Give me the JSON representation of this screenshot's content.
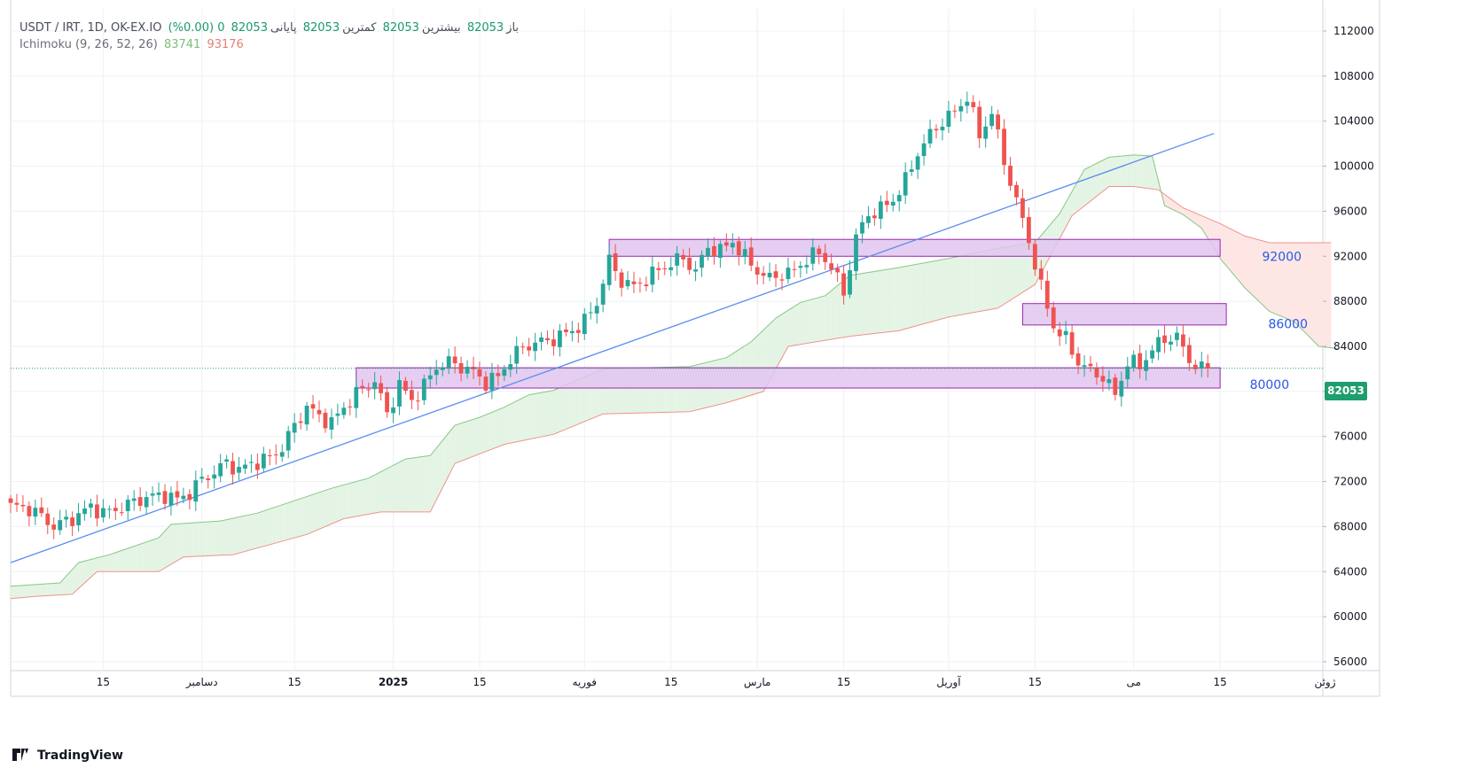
{
  "header": {
    "symbol_line": "USDT / IRT, 1D, OK-EX.IO",
    "open_label": "باز",
    "open_value": "82053",
    "high_label": "بیشترین",
    "high_value": "82053",
    "low_label": "کمترین",
    "low_value": "82053",
    "close_label": "پایانی",
    "close_value": "82053",
    "change": "0 (0.00%)",
    "indicator_name": "Ichimoku (9, 26, 52, 26)",
    "indicator_value_a": "83741",
    "indicator_value_b": "93176"
  },
  "last_price_tag": "82053",
  "footer": {
    "brand": "TradingView"
  },
  "colors": {
    "up": "#26a69a",
    "down": "#ef5350",
    "trendline": "#5b8def",
    "zone_fill": "#e1c6ee",
    "zone_border": "#9c27b0",
    "cloud_green": "#e4f4e4",
    "cloud_red": "#fde6e4",
    "span_a": "#86c886",
    "span_b": "#f0938d",
    "level_text": "#2a57e8",
    "last_price": "#1f9e6d"
  },
  "chart_data": {
    "type": "candlestick",
    "title": "USDT / IRT, 1D, OK-EX.IO",
    "ylim": [
      54000,
      114000
    ],
    "y_ticks": [
      56000,
      60000,
      64000,
      68000,
      72000,
      76000,
      80000,
      84000,
      88000,
      92000,
      96000,
      100000,
      104000,
      108000,
      112000
    ],
    "x_ticks": [
      {
        "day": 15,
        "label": "15"
      },
      {
        "day": 31,
        "label": "دسامبر"
      },
      {
        "day": 46,
        "label": "15"
      },
      {
        "day": 62,
        "label": "2025",
        "bold": true
      },
      {
        "day": 76,
        "label": "15"
      },
      {
        "day": 93,
        "label": "فوریه"
      },
      {
        "day": 107,
        "label": "15"
      },
      {
        "day": 121,
        "label": "مارس"
      },
      {
        "day": 135,
        "label": "15"
      },
      {
        "day": 152,
        "label": "آوریل"
      },
      {
        "day": 166,
        "label": "15"
      },
      {
        "day": 182,
        "label": "می"
      },
      {
        "day": 196,
        "label": "15"
      },
      {
        "day": 213,
        "label": "ژوئن"
      }
    ],
    "x_range_days": [
      0,
      228
    ],
    "close_points": [
      [
        0,
        69800
      ],
      [
        3,
        69600
      ],
      [
        5,
        68900
      ],
      [
        7,
        68000
      ],
      [
        9,
        68500
      ],
      [
        11,
        69000
      ],
      [
        13,
        69800
      ],
      [
        15,
        69200
      ],
      [
        17,
        69500
      ],
      [
        20,
        70200
      ],
      [
        22,
        70600
      ],
      [
        25,
        70800
      ],
      [
        27,
        70400
      ],
      [
        29,
        71000
      ],
      [
        31,
        72200
      ],
      [
        33,
        72800
      ],
      [
        35,
        73700
      ],
      [
        37,
        73000
      ],
      [
        39,
        73600
      ],
      [
        42,
        74100
      ],
      [
        44,
        75000
      ],
      [
        46,
        77000
      ],
      [
        48,
        78600
      ],
      [
        50,
        77800
      ],
      [
        52,
        77200
      ],
      [
        54,
        78600
      ],
      [
        56,
        79800
      ],
      [
        59,
        80900
      ],
      [
        61,
        78000
      ],
      [
        63,
        80600
      ],
      [
        65,
        79200
      ],
      [
        67,
        80500
      ],
      [
        69,
        82200
      ],
      [
        71,
        82600
      ],
      [
        73,
        82200
      ],
      [
        75,
        81700
      ],
      [
        77,
        80800
      ],
      [
        79,
        81300
      ],
      [
        81,
        82900
      ],
      [
        83,
        83900
      ],
      [
        85,
        84300
      ],
      [
        87,
        84500
      ],
      [
        89,
        84900
      ],
      [
        91,
        85400
      ],
      [
        93,
        86200
      ],
      [
        95,
        87900
      ],
      [
        97,
        91600
      ],
      [
        99,
        89800
      ],
      [
        101,
        89300
      ],
      [
        103,
        90000
      ],
      [
        105,
        90800
      ],
      [
        107,
        91400
      ],
      [
        109,
        91800
      ],
      [
        111,
        90700
      ],
      [
        113,
        92800
      ],
      [
        115,
        92500
      ],
      [
        117,
        93300
      ],
      [
        119,
        91900
      ],
      [
        121,
        90700
      ],
      [
        123,
        90000
      ],
      [
        125,
        90400
      ],
      [
        127,
        90700
      ],
      [
        129,
        91800
      ],
      [
        131,
        92300
      ],
      [
        133,
        91100
      ],
      [
        135,
        88700
      ],
      [
        137,
        93700
      ],
      [
        139,
        95700
      ],
      [
        141,
        96200
      ],
      [
        143,
        97000
      ],
      [
        145,
        98700
      ],
      [
        147,
        101200
      ],
      [
        149,
        102800
      ],
      [
        151,
        104000
      ],
      [
        153,
        104800
      ],
      [
        155,
        106200
      ],
      [
        157,
        102700
      ],
      [
        159,
        104800
      ],
      [
        161,
        100400
      ],
      [
        163,
        96900
      ],
      [
        165,
        93400
      ],
      [
        167,
        89200
      ],
      [
        169,
        85800
      ],
      [
        171,
        84600
      ],
      [
        173,
        82600
      ],
      [
        175,
        81800
      ],
      [
        177,
        81300
      ],
      [
        179,
        79700
      ],
      [
        181,
        82600
      ],
      [
        183,
        82300
      ],
      [
        185,
        83700
      ],
      [
        187,
        84700
      ],
      [
        189,
        84800
      ],
      [
        191,
        82800
      ],
      [
        193,
        81900
      ],
      [
        194,
        82053
      ]
    ],
    "trendline": {
      "from": [
        0,
        64800
      ],
      "to": [
        195,
        102900
      ]
    },
    "zones": [
      {
        "x0": 97,
        "x1": 196,
        "y0": 92000,
        "y1": 93500
      },
      {
        "x0": 164,
        "x1": 197,
        "y0": 85900,
        "y1": 87800
      },
      {
        "x0": 56,
        "x1": 196,
        "y0": 80300,
        "y1": 82100
      }
    ],
    "level_labels": [
      {
        "value": "92000",
        "day": 206,
        "price": 92000
      },
      {
        "value": "86000",
        "day": 207,
        "price": 86000
      },
      {
        "value": "80000",
        "day": 204,
        "price": 80600
      }
    ],
    "ichimoku": {
      "name": "Ichimoku (9, 26, 52, 26)",
      "span_a": [
        [
          0,
          62700
        ],
        [
          8,
          63000
        ],
        [
          11,
          64800
        ],
        [
          16,
          65500
        ],
        [
          24,
          67000
        ],
        [
          26,
          68200
        ],
        [
          34,
          68500
        ],
        [
          40,
          69200
        ],
        [
          46,
          70300
        ],
        [
          52,
          71400
        ],
        [
          58,
          72300
        ],
        [
          64,
          74000
        ],
        [
          68,
          74300
        ],
        [
          72,
          77000
        ],
        [
          76,
          77700
        ],
        [
          80,
          78600
        ],
        [
          84,
          79700
        ],
        [
          88,
          80100
        ],
        [
          96,
          82000
        ],
        [
          110,
          82200
        ],
        [
          116,
          83000
        ],
        [
          120,
          84400
        ],
        [
          124,
          86500
        ],
        [
          128,
          87900
        ],
        [
          132,
          88500
        ],
        [
          136,
          90300
        ],
        [
          144,
          91000
        ],
        [
          152,
          91800
        ],
        [
          160,
          92700
        ],
        [
          166,
          93200
        ],
        [
          170,
          95800
        ],
        [
          174,
          99700
        ],
        [
          178,
          100800
        ],
        [
          182,
          101000
        ],
        [
          185,
          100900
        ],
        [
          187,
          96500
        ],
        [
          190,
          95700
        ],
        [
          193,
          94500
        ],
        [
          196,
          91800
        ],
        [
          200,
          89200
        ],
        [
          204,
          87100
        ],
        [
          208,
          86200
        ],
        [
          212,
          84000
        ],
        [
          215,
          83800
        ]
      ],
      "span_b": [
        [
          0,
          61600
        ],
        [
          4,
          61800
        ],
        [
          10,
          62000
        ],
        [
          14,
          64000
        ],
        [
          24,
          64000
        ],
        [
          28,
          65300
        ],
        [
          36,
          65500
        ],
        [
          42,
          66400
        ],
        [
          48,
          67300
        ],
        [
          54,
          68700
        ],
        [
          60,
          69300
        ],
        [
          68,
          69300
        ],
        [
          72,
          73600
        ],
        [
          80,
          75300
        ],
        [
          88,
          76200
        ],
        [
          96,
          78000
        ],
        [
          110,
          78200
        ],
        [
          116,
          79000
        ],
        [
          122,
          80000
        ],
        [
          126,
          84000
        ],
        [
          136,
          84900
        ],
        [
          144,
          85400
        ],
        [
          152,
          86600
        ],
        [
          160,
          87400
        ],
        [
          166,
          89500
        ],
        [
          172,
          95600
        ],
        [
          178,
          98200
        ],
        [
          182,
          98200
        ],
        [
          186,
          97900
        ],
        [
          190,
          96300
        ],
        [
          196,
          94900
        ],
        [
          200,
          93800
        ],
        [
          204,
          93200
        ],
        [
          214,
          93200
        ]
      ]
    },
    "last_price": 82053
  }
}
